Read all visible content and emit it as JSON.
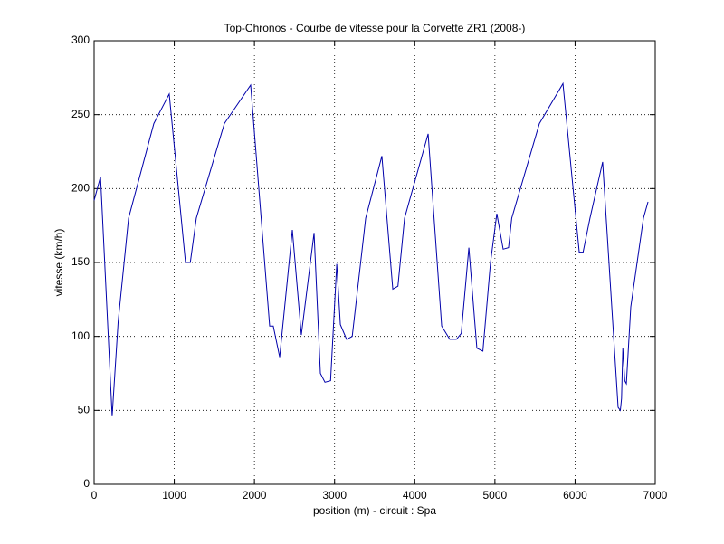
{
  "chart_data": {
    "type": "line",
    "title": "Top-Chronos - Courbe de vitesse pour la Corvette ZR1 (2008-)",
    "x_label": "position (m) - circuit : Spa",
    "y_label": "vitesse (km/h)",
    "xlim": [
      0,
      7000
    ],
    "ylim": [
      0,
      300
    ],
    "xticks": [
      0,
      1000,
      2000,
      3000,
      4000,
      5000,
      6000,
      7000
    ],
    "yticks": [
      0,
      50,
      100,
      150,
      200,
      250,
      300
    ],
    "grid": true,
    "series": [
      {
        "name": "vitesse",
        "color": "#0000aa",
        "x": [
          0,
          80,
          225,
          300,
          430,
          745,
          937,
          1140,
          1200,
          1275,
          1625,
          1953,
          2190,
          2235,
          2315,
          2473,
          2585,
          2744,
          2823,
          2880,
          2950,
          3027,
          3072,
          3150,
          3220,
          3388,
          3590,
          3726,
          3790,
          3873,
          4167,
          4336,
          4437,
          4520,
          4580,
          4675,
          4775,
          4850,
          4945,
          5024,
          5103,
          5170,
          5210,
          5555,
          5849,
          6052,
          6100,
          6186,
          6344,
          6537,
          6565,
          6580,
          6596,
          6620,
          6640,
          6695,
          6853,
          6910
        ],
        "values": [
          192,
          208,
          46,
          110,
          180,
          244,
          264,
          150,
          150,
          180,
          244,
          270,
          107,
          107,
          86,
          172,
          101,
          170,
          75,
          69,
          70,
          149,
          108,
          98,
          100,
          180,
          222,
          132,
          134,
          180,
          237,
          107,
          98,
          98,
          102,
          160,
          92,
          90,
          150,
          183,
          159,
          160,
          180,
          244,
          271,
          157,
          157,
          180,
          218,
          52,
          50,
          58,
          92,
          70,
          68,
          120,
          180,
          191
        ]
      }
    ]
  }
}
